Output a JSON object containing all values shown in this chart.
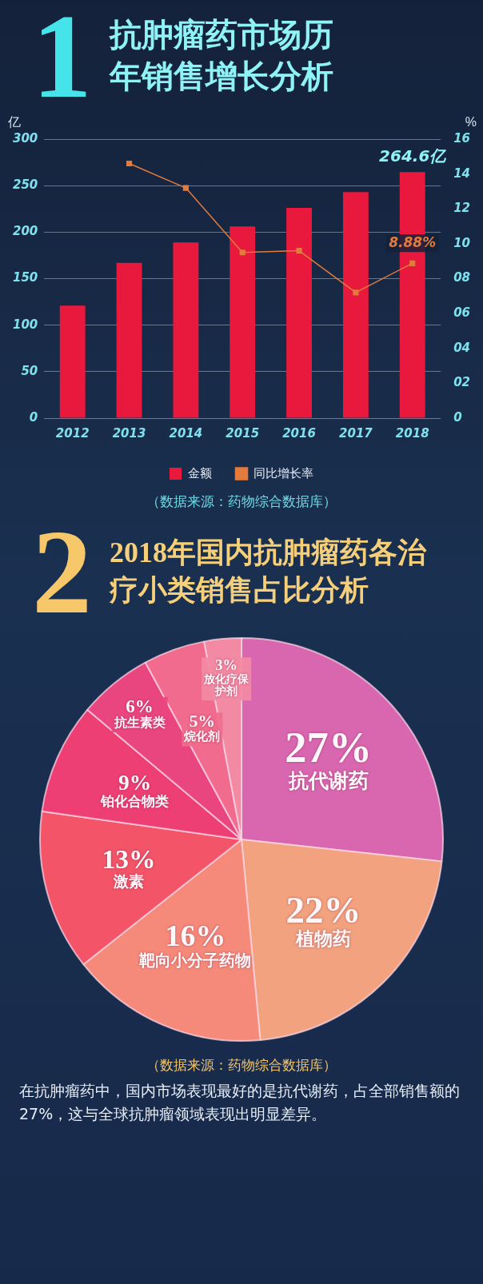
{
  "chart_data": [
    {
      "type": "bar",
      "subtitle": "1",
      "title": "抗肿瘤药市场历年销售增长分析",
      "categories": [
        "2012",
        "2013",
        "2014",
        "2015",
        "2016",
        "2017",
        "2018"
      ],
      "ylabel": "亿",
      "y2label": "%",
      "series": [
        {
          "name": "金额",
          "type": "bar",
          "color": "#e8193c",
          "values": [
            121,
            167,
            189,
            206,
            226,
            243,
            264.6
          ],
          "value_labels": [
            null,
            null,
            null,
            null,
            null,
            null,
            "264.6亿"
          ]
        },
        {
          "name": "同比增长率",
          "type": "line",
          "axis": "y2",
          "color": "#e27b3c",
          "values": [
            null,
            14.6,
            13.2,
            9.5,
            9.6,
            7.2,
            8.88
          ],
          "value_labels": [
            null,
            null,
            null,
            null,
            null,
            null,
            "8.88%"
          ]
        }
      ],
      "ylim": [
        0,
        300
      ],
      "yticks": [
        0,
        50,
        100,
        150,
        200,
        250,
        300
      ],
      "y2lim": [
        0,
        16
      ],
      "y2ticks": [
        0,
        {
          "value": 2,
          "label": "02"
        },
        {
          "value": 4,
          "label": "04"
        },
        {
          "value": 6,
          "label": "06"
        },
        {
          "value": 8,
          "label": "08"
        },
        10,
        12,
        14,
        16
      ],
      "grid": "y",
      "legend": "bottom",
      "marker": "square",
      "annotations": [
        "（数据来源：药物综合数据库）"
      ]
    },
    {
      "type": "pie",
      "subtitle": "2",
      "title": "2018年国内抗肿瘤药各治疗小类销售占比分析",
      "categories": [
        "抗代谢药",
        "植物药",
        "靶向小分子药物",
        "激素",
        "铂化合物类",
        "抗生素类",
        "烷化剂",
        "放化疗保护剂"
      ],
      "values": [
        27,
        22,
        16,
        13,
        9,
        6,
        5,
        3
      ],
      "colors": [
        "#d867b0",
        "#f2a27e",
        "#f58a7a",
        "#f35468",
        "#ee3f74",
        "#e9457f",
        "#f06b8d",
        "#f28aa3"
      ],
      "value_labels": [
        "27%",
        "22%",
        "16%",
        "13%",
        "9%",
        "6%",
        "5%",
        "3%"
      ],
      "annotations": [
        "（数据来源：药物综合数据库）",
        "在抗肿瘤药中，国内市场表现最好的是抗代谢药，占全部销售额的27%，这与全球抗肿瘤领域表现出明显差异。"
      ]
    }
  ]
}
